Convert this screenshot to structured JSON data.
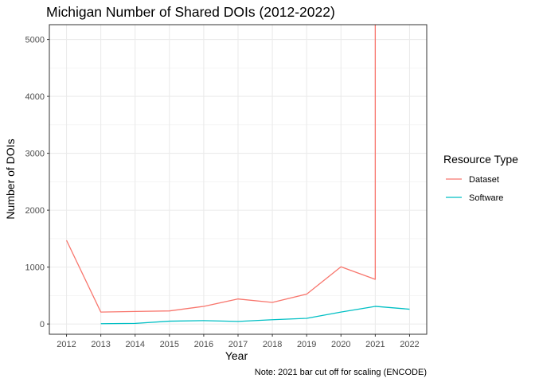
{
  "chart_data": {
    "type": "line",
    "title": "Michigan Number of Shared DOIs (2012-2022)",
    "xlabel": "Year",
    "ylabel": "Number of DOIs",
    "caption": "Note: 2021 bar cut off for scaling (ENCODE)",
    "x": [
      2012,
      2013,
      2014,
      2015,
      2016,
      2017,
      2018,
      2019,
      2020,
      2021,
      2022
    ],
    "xlim": [
      2011.5,
      2022.5
    ],
    "ylim": [
      -180,
      5260
    ],
    "yticks": [
      0,
      1000,
      2000,
      3000,
      4000,
      5000
    ],
    "grid": true,
    "legend_title": "Resource Type",
    "legend_position": "right",
    "series": [
      {
        "name": "Dataset",
        "color": "#F8766D",
        "x": [
          2012,
          2013,
          2014,
          2015,
          2016,
          2017,
          2018,
          2019,
          2020,
          2021,
          2021
        ],
        "values": [
          1470,
          210,
          220,
          230,
          310,
          440,
          380,
          525,
          1005,
          785,
          5260
        ]
      },
      {
        "name": "Software",
        "color": "#00BFC4",
        "x": [
          2013,
          2014,
          2015,
          2016,
          2017,
          2018,
          2019,
          2020,
          2021,
          2022
        ],
        "values": [
          5,
          10,
          50,
          60,
          45,
          75,
          100,
          210,
          310,
          260
        ]
      }
    ]
  }
}
